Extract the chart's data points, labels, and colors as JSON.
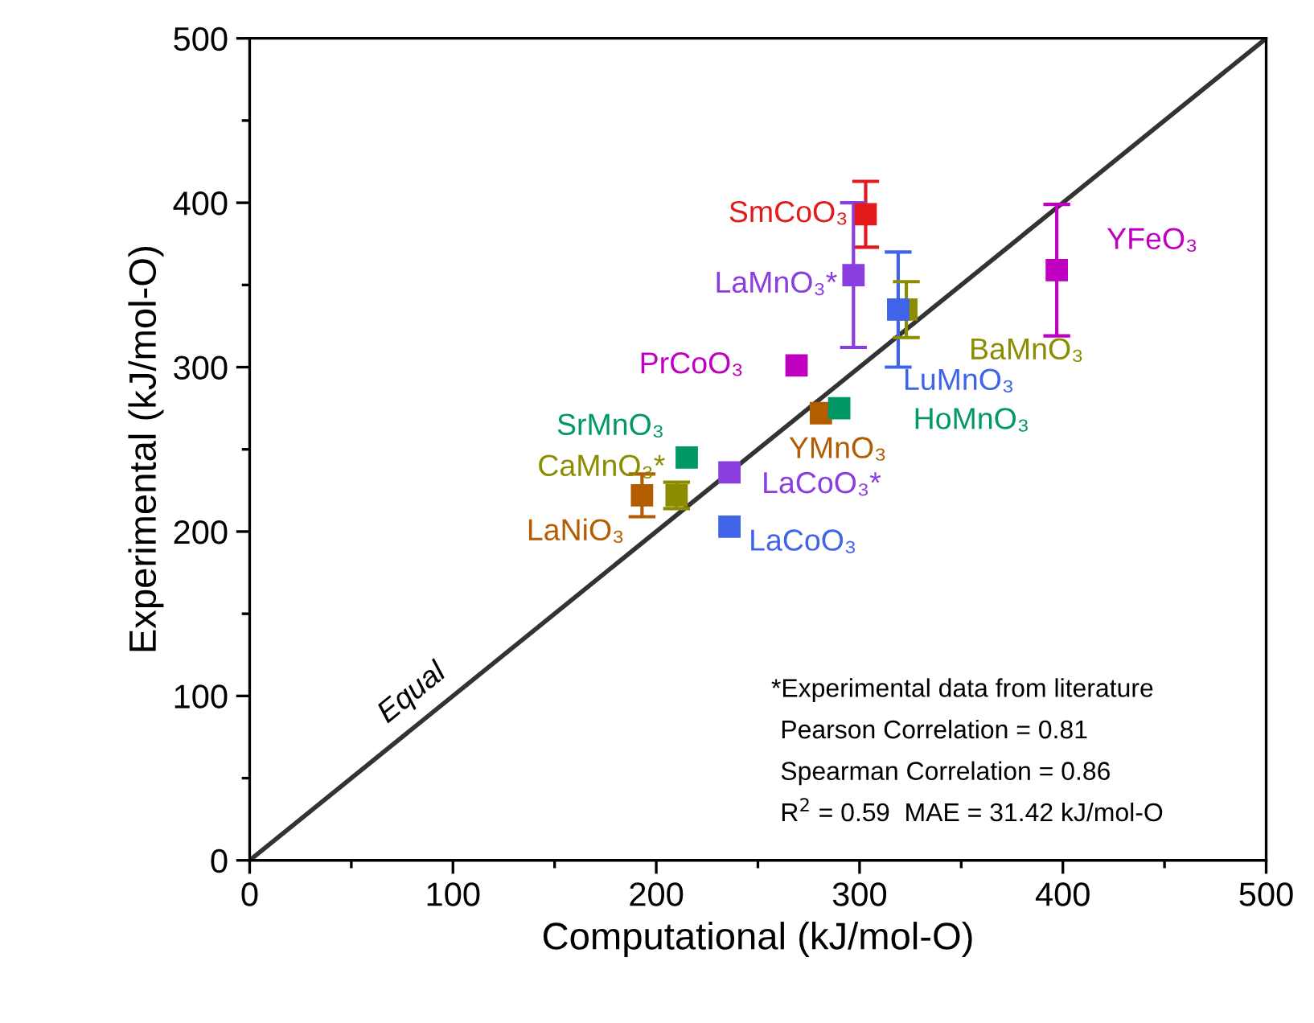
{
  "chart_data": {
    "type": "scatter",
    "xlabel": "Computational (kJ/mol-O)",
    "ylabel": "Experimental (kJ/mol-O)",
    "xlim": [
      0,
      500
    ],
    "ylim": [
      0,
      500
    ],
    "xticks": [
      0,
      {
        "value": 50,
        "label": null
      },
      100,
      {
        "value": 150,
        "label": null
      },
      200,
      {
        "value": 250,
        "label": null
      },
      300,
      {
        "value": 350,
        "label": null
      },
      400,
      {
        "value": 450,
        "label": null
      },
      500
    ],
    "yticks": [
      0,
      {
        "value": 50,
        "label": null
      },
      100,
      {
        "value": 150,
        "label": null
      },
      200,
      {
        "value": 250,
        "label": null
      },
      300,
      {
        "value": 350,
        "label": null
      },
      400,
      {
        "value": 450,
        "label": null
      },
      500
    ],
    "grid": false,
    "legend": false,
    "marker": "square",
    "series": [
      {
        "type": "line",
        "x": [
          0,
          500
        ],
        "values": [
          0,
          500
        ],
        "color": "#333333",
        "marker": "none",
        "line_style": "solid"
      },
      {
        "name": "SmCoO₃",
        "color": "#e31a1c",
        "x": [
          303
        ],
        "values": [
          393
        ],
        "errors": [
          20
        ]
      },
      {
        "name": "LuMnO₃",
        "color": "#3f64e8",
        "x": [
          319
        ],
        "values": [
          335
        ],
        "errors": [
          35
        ]
      },
      {
        "name": "LaMnO₃*",
        "color": "#8a3ee0",
        "x": [
          297
        ],
        "values": [
          356
        ],
        "errors": [
          44
        ]
      },
      {
        "name": "YFeO₃",
        "color": "#c000c0",
        "x": [
          397
        ],
        "values": [
          359
        ],
        "errors": [
          40
        ]
      },
      {
        "name": "BaMnO₃",
        "color": "#8c8c00",
        "x": [
          323
        ],
        "values": [
          335
        ],
        "errors": [
          17
        ]
      },
      {
        "name": "PrCoO₃",
        "color": "#c000c0",
        "x": [
          269
        ],
        "values": [
          301
        ],
        "errors": [
          null
        ]
      },
      {
        "name": "HoMnO₃",
        "color": "#009966",
        "x": [
          290
        ],
        "values": [
          275
        ],
        "errors": [
          null
        ]
      },
      {
        "name": "YMnO₃",
        "color": "#b35c00",
        "x": [
          281
        ],
        "values": [
          272
        ],
        "errors": [
          null
        ]
      },
      {
        "name": "SrMnO₃",
        "color": "#009966",
        "x": [
          215
        ],
        "values": [
          245
        ],
        "errors": [
          null
        ]
      },
      {
        "name": "LaCoO₃*",
        "color": "#8a3ee0",
        "x": [
          236
        ],
        "values": [
          236
        ],
        "errors": [
          null
        ]
      },
      {
        "name": "LaNiO₃",
        "color": "#b35c00",
        "x": [
          193
        ],
        "values": [
          222
        ],
        "errors": [
          13
        ]
      },
      {
        "name": "CaMnO₃*",
        "color": "#8c8c00",
        "x": [
          210
        ],
        "values": [
          222
        ],
        "errors": [
          8
        ]
      },
      {
        "name": "LaCoO₃",
        "color": "#3f64e8",
        "x": [
          236
        ],
        "values": [
          203
        ],
        "errors": [
          null
        ]
      }
    ],
    "annotations": [
      {
        "text": "Equal",
        "x": 80,
        "y": 80
      },
      "*Experimental data from literature",
      "Pearson Correlation = 0.81",
      "Spearman Correlation = 0.86",
      "R$^{2}$ = 0.59  MAE = 31.42 kJ/mol-O"
    ]
  }
}
